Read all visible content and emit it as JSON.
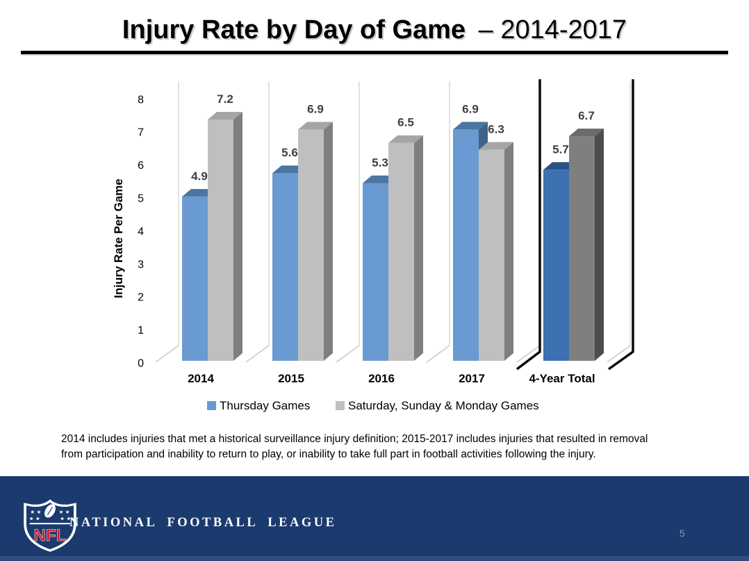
{
  "title": {
    "main": "Injury Rate by Day of Game",
    "suffix": "– 2014-2017"
  },
  "chart_data": {
    "type": "bar",
    "style": "3d-clustered",
    "title": "Injury Rate by Day of Game – 2014-2017",
    "categories": [
      "2014",
      "2015",
      "2016",
      "2017",
      "4-Year Total"
    ],
    "series": [
      {
        "name": "Thursday Games",
        "values": [
          4.9,
          5.6,
          5.3,
          6.9,
          5.7
        ],
        "color": {
          "front": "#6A9AD2",
          "top": "#4A76A0",
          "side": "#3E6388"
        },
        "emphasis_color": {
          "front": "#3C70B0",
          "top": "#2B5284",
          "side": "#24436C"
        }
      },
      {
        "name": "Saturday, Sunday & Monday Games",
        "values": [
          7.2,
          6.9,
          6.5,
          6.3,
          6.7
        ],
        "color": {
          "front": "#BFBFBF",
          "top": "#A5A5A5",
          "side": "#7F7F7F"
        },
        "emphasis_color": {
          "front": "#7F7F7F",
          "top": "#6B6B6B",
          "side": "#4D4D4D"
        }
      }
    ],
    "emphasis_category": "4-Year Total",
    "xlabel": "",
    "ylabel": "Injury Rate Per Game",
    "ylim": [
      0,
      8
    ],
    "ytick_step": 1,
    "legend_position": "bottom",
    "grid": "vertical-category-separators",
    "value_label_color": "#3F3F3F",
    "gridline_color": "#D9D9D9",
    "floorline_color": "#C8C8C8",
    "frame_color": "#0A0A0A"
  },
  "footnote_lines": [
    "2014 includes injuries that met a historical surveillance injury definition; 2015-2017 includes injuries that resulted in removal",
    "from participation and inability to return to play, or inability to take full part in football activities following the injury."
  ],
  "footer": {
    "league_name": "NATIONAL FOOTBALL LEAGUE",
    "logo": "nfl-shield-logo",
    "logo_text": "NFL",
    "page_number": "5",
    "navy": "#1B3A6E",
    "strip_blue": "#2F4E7D",
    "red": "#CF1428",
    "white": "#FFFFFF"
  }
}
